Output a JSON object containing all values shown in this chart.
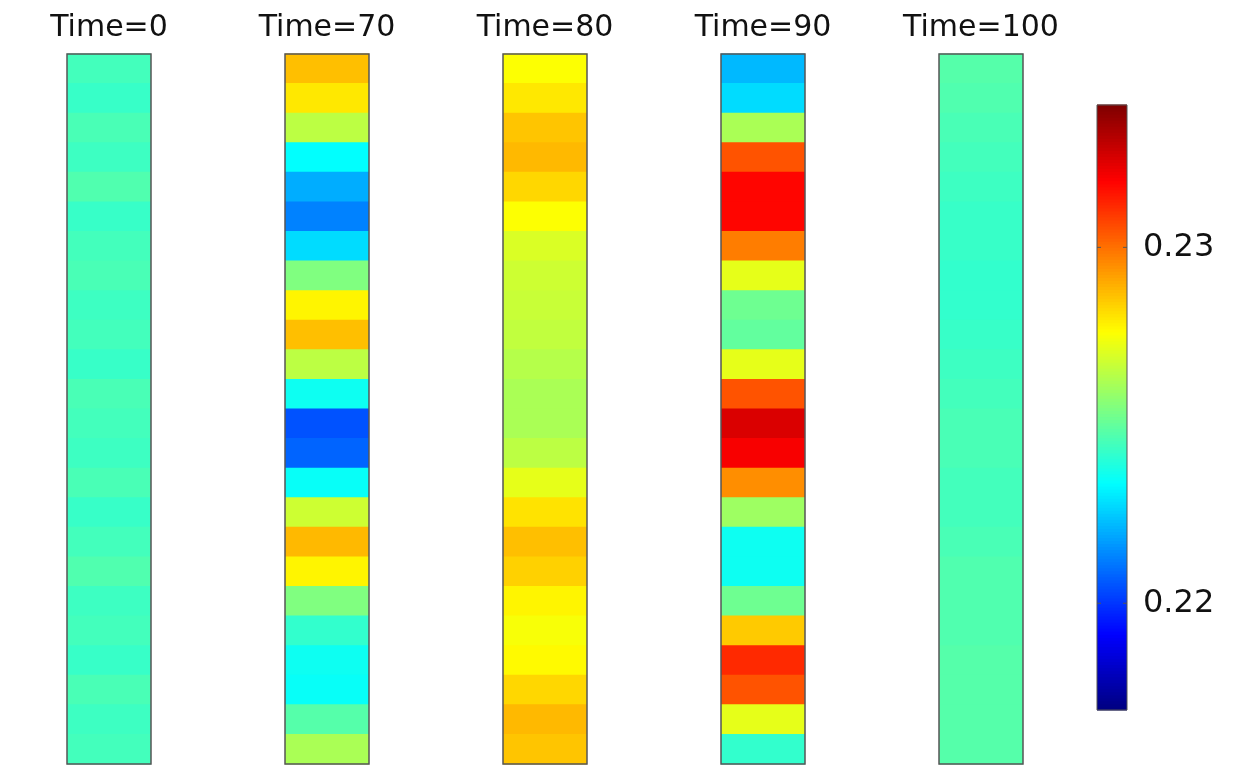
{
  "chart_data": {
    "type": "heatmap",
    "tick_labels": "x",
    "clim": [
      0.217,
      0.234
    ],
    "cticks": [
      0.22,
      0.23
    ],
    "categories": [
      "Time=0",
      "Time=70",
      "Time=80",
      "Time=90",
      "Time=100"
    ],
    "y_categories": [
      null,
      null,
      null,
      null,
      null,
      null,
      null,
      null,
      null,
      null,
      null,
      null,
      null,
      null,
      null,
      null,
      null,
      null,
      null,
      null,
      null,
      null,
      null,
      null
    ],
    "cells": [
      [
        0.2245,
        0.2287,
        0.2276,
        0.2222,
        0.2248
      ],
      [
        0.2243,
        0.228,
        0.228,
        0.2228,
        0.2247
      ],
      [
        0.2246,
        0.2265,
        0.2286,
        0.2262,
        0.2246
      ],
      [
        0.2244,
        0.2234,
        0.2288,
        0.2305,
        0.2245
      ],
      [
        0.2247,
        0.222,
        0.2283,
        0.2318,
        0.2244
      ],
      [
        0.2243,
        0.2213,
        0.2276,
        0.2318,
        0.2243
      ],
      [
        0.2245,
        0.2228,
        0.227,
        0.2298,
        0.2243
      ],
      [
        0.2246,
        0.2255,
        0.2268,
        0.2272,
        0.2242
      ],
      [
        0.2244,
        0.2278,
        0.2267,
        0.2252,
        0.2242
      ],
      [
        0.2245,
        0.2287,
        0.2266,
        0.225,
        0.2243
      ],
      [
        0.2243,
        0.2265,
        0.2264,
        0.2272,
        0.2244
      ],
      [
        0.2246,
        0.2236,
        0.2262,
        0.2305,
        0.2245
      ],
      [
        0.2245,
        0.2205,
        0.2262,
        0.2325,
        0.2246
      ],
      [
        0.2244,
        0.2208,
        0.2265,
        0.232,
        0.2246
      ],
      [
        0.2246,
        0.2235,
        0.2272,
        0.2295,
        0.2245
      ],
      [
        0.2243,
        0.2268,
        0.2281,
        0.226,
        0.2245
      ],
      [
        0.2245,
        0.2288,
        0.2287,
        0.2236,
        0.2246
      ],
      [
        0.2247,
        0.2278,
        0.2284,
        0.2236,
        0.2247
      ],
      [
        0.2244,
        0.2255,
        0.2278,
        0.2252,
        0.2247
      ],
      [
        0.2245,
        0.2242,
        0.2275,
        0.2285,
        0.2247
      ],
      [
        0.2243,
        0.2236,
        0.2277,
        0.2312,
        0.2248
      ],
      [
        0.2246,
        0.2235,
        0.2283,
        0.2305,
        0.2248
      ],
      [
        0.2244,
        0.2248,
        0.2288,
        0.2272,
        0.2248
      ],
      [
        0.2245,
        0.2262,
        0.2286,
        0.2242,
        0.2248
      ]
    ]
  }
}
